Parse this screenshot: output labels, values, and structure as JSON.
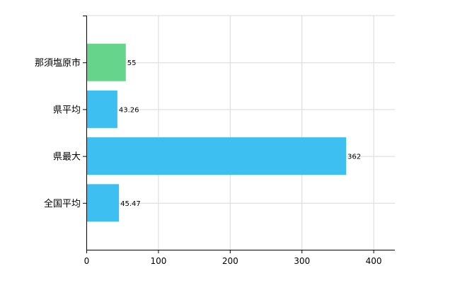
{
  "chart_data": {
    "type": "bar",
    "orientation": "horizontal",
    "categories": [
      "那須塩原市",
      "県平均",
      "県最大",
      "全国平均"
    ],
    "values": [
      55,
      43.26,
      362,
      45.47
    ],
    "value_labels": [
      "55",
      "43.26",
      "362",
      "45.47"
    ],
    "bar_colors": [
      "#66d48a",
      "#3dbff2",
      "#3dbff2",
      "#3dbff2"
    ],
    "xlim": [
      0,
      430
    ],
    "xticks": [
      0,
      100,
      200,
      300,
      400
    ],
    "xtick_labels": [
      "0",
      "100",
      "200",
      "300",
      "400"
    ],
    "grid": true,
    "legend": "none"
  }
}
